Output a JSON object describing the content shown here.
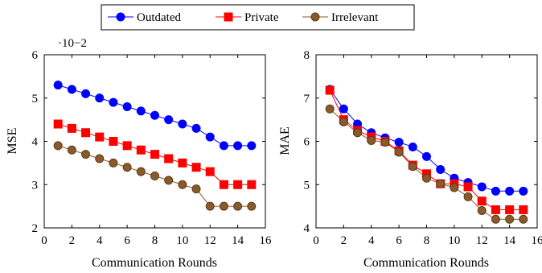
{
  "legend": {
    "position": "top-center",
    "entries": [
      {
        "label": "Outdated",
        "color": "#0000ff",
        "marker": "circle"
      },
      {
        "label": "Private",
        "color": "#ff0000",
        "marker": "square"
      },
      {
        "label": "Irrelevant",
        "color": "#8b5a2b",
        "marker": "circle"
      }
    ]
  },
  "chart_data": [
    {
      "type": "line",
      "xlabel": "Communication Rounds",
      "ylabel": "MSE",
      "xlim": [
        0,
        16
      ],
      "ylim": [
        2,
        6
      ],
      "xticks": [
        "0",
        "2",
        "4",
        "6",
        "8",
        "10",
        "12",
        "14",
        "16"
      ],
      "yticks": [
        "2",
        "3",
        "4",
        "5",
        "6"
      ],
      "y_multiplier": "·10−2",
      "grid": false,
      "x": [
        1,
        2,
        3,
        4,
        5,
        6,
        7,
        8,
        9,
        10,
        11,
        12,
        13,
        14,
        15
      ],
      "series": [
        {
          "name": "Outdated",
          "values": [
            5.3,
            5.2,
            5.1,
            5.0,
            4.9,
            4.8,
            4.7,
            4.6,
            4.5,
            4.4,
            4.3,
            4.1,
            3.9,
            3.9,
            3.9
          ]
        },
        {
          "name": "Private",
          "values": [
            4.4,
            4.3,
            4.2,
            4.1,
            4.0,
            3.9,
            3.8,
            3.7,
            3.6,
            3.5,
            3.4,
            3.3,
            3.0,
            3.0,
            3.0
          ]
        },
        {
          "name": "Irrelevant",
          "values": [
            3.9,
            3.8,
            3.7,
            3.6,
            3.5,
            3.4,
            3.3,
            3.2,
            3.1,
            3.0,
            2.9,
            2.5,
            2.5,
            2.5,
            2.5
          ]
        }
      ]
    },
    {
      "type": "line",
      "xlabel": "Communication Rounds",
      "ylabel": "MAE",
      "xlim": [
        0,
        16
      ],
      "ylim": [
        4,
        8
      ],
      "xticks": [
        "0",
        "2",
        "4",
        "6",
        "8",
        "10",
        "12",
        "14",
        "16"
      ],
      "yticks": [
        "4",
        "5",
        "6",
        "7",
        "8"
      ],
      "grid": false,
      "x": [
        1,
        2,
        3,
        4,
        5,
        6,
        7,
        8,
        9,
        10,
        11,
        12,
        13,
        14,
        15
      ],
      "series": [
        {
          "name": "Outdated",
          "values": [
            7.2,
            6.75,
            6.4,
            6.2,
            6.08,
            5.98,
            5.87,
            5.65,
            5.35,
            5.15,
            5.05,
            4.95,
            4.85,
            4.85,
            4.85
          ]
        },
        {
          "name": "Private",
          "values": [
            7.18,
            6.5,
            6.25,
            6.1,
            6.0,
            5.78,
            5.45,
            5.25,
            5.02,
            5.02,
            4.95,
            4.62,
            4.42,
            4.42,
            4.42
          ]
        },
        {
          "name": "Irrelevant",
          "values": [
            6.75,
            6.45,
            6.2,
            6.02,
            5.98,
            5.75,
            5.42,
            5.15,
            5.02,
            4.93,
            4.72,
            4.4,
            4.2,
            4.2,
            4.2
          ]
        }
      ]
    }
  ]
}
